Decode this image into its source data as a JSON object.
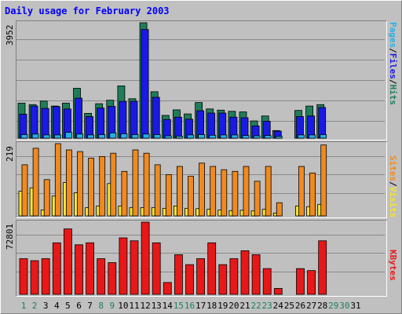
{
  "title": "Daily usage for February 2003",
  "colors": {
    "hits": "#1e7e5a",
    "files": "#1a1ae6",
    "pages": "#24b0e6",
    "visits": "#f5e430",
    "sites": "#f08a20",
    "kbytes": "#e81818",
    "weekday": "#000000",
    "weekend": "#1e7e5a"
  },
  "labels": {
    "hits_max": "3952",
    "visits_max": "219",
    "kbytes_max": "72801",
    "pages": "Pages",
    "files": "Files",
    "hits": "Hits",
    "visits": "Visits",
    "sites": "Sites",
    "kbytes": "KBytes",
    "sep": "/"
  },
  "chart_data": {
    "type": "bar",
    "title": "Daily usage for February 2003",
    "categories": [
      "1",
      "2",
      "3",
      "4",
      "5",
      "6",
      "7",
      "8",
      "9",
      "10",
      "11",
      "12",
      "13",
      "14",
      "15",
      "16",
      "17",
      "18",
      "19",
      "20",
      "21",
      "22",
      "23",
      "24",
      "25",
      "26",
      "27",
      "28",
      "29",
      "30",
      "31"
    ],
    "weekend_days": [
      "1",
      "2",
      "8",
      "9",
      "15",
      "16",
      "22",
      "23",
      "29",
      "30"
    ],
    "panels": [
      {
        "name": "hits-files-pages",
        "ymax": 3952,
        "series": [
          {
            "name": "Hits",
            "values": [
              1200,
              1150,
              1270,
              1100,
              1200,
              1710,
              850,
              1180,
              1300,
              1790,
              1350,
              3952,
              1590,
              780,
              970,
              830,
              1220,
              1000,
              960,
              920,
              900,
              590,
              760,
              260,
              0,
              950,
              1100,
              1150,
              0,
              0,
              0
            ]
          },
          {
            "name": "Files",
            "values": [
              820,
              1100,
              1020,
              1080,
              1000,
              1370,
              740,
              1030,
              1090,
              1260,
              1260,
              3720,
              1400,
              640,
              720,
              650,
              940,
              860,
              860,
              720,
              700,
              420,
              580,
              240,
              0,
              740,
              760,
              1050,
              0,
              0,
              0
            ]
          },
          {
            "name": "Pages",
            "values": [
              120,
              140,
              110,
              110,
              200,
              140,
              110,
              120,
              180,
              150,
              120,
              140,
              120,
              80,
              70,
              110,
              120,
              100,
              110,
              110,
              90,
              80,
              90,
              60,
              0,
              110,
              110,
              120,
              0,
              0,
              0
            ]
          }
        ]
      },
      {
        "name": "visits-sites",
        "ymax": 219,
        "series": [
          {
            "name": "Visits",
            "values": [
              75,
              85,
              18,
              60,
              101,
              70,
              25,
              30,
              98,
              30,
              25,
              25,
              25,
              23,
              30,
              23,
              22,
              20,
              18,
              16,
              17,
              15,
              20,
              8,
              0,
              30,
              28,
              35,
              0,
              0,
              0
            ]
          },
          {
            "name": "Sites",
            "values": [
              155,
              205,
              110,
              219,
              200,
              195,
              175,
              180,
              190,
              135,
              200,
              190,
              155,
              125,
              150,
              120,
              160,
              150,
              140,
              135,
              150,
              105,
              150,
              40,
              0,
              150,
              130,
              215,
              0,
              0,
              0
            ]
          }
        ]
      },
      {
        "name": "kbytes",
        "ymax": 72801,
        "series": [
          {
            "name": "KBytes",
            "values": [
              36000,
              34000,
              36000,
              52000,
              66000,
              50000,
              52000,
              36000,
              32000,
              57000,
              54000,
              72801,
              52000,
              12000,
              40000,
              30000,
              36000,
              52000,
              30000,
              36000,
              44000,
              40000,
              26000,
              6000,
              0,
              26000,
              24000,
              54000,
              0,
              0,
              0
            ]
          }
        ]
      }
    ]
  }
}
